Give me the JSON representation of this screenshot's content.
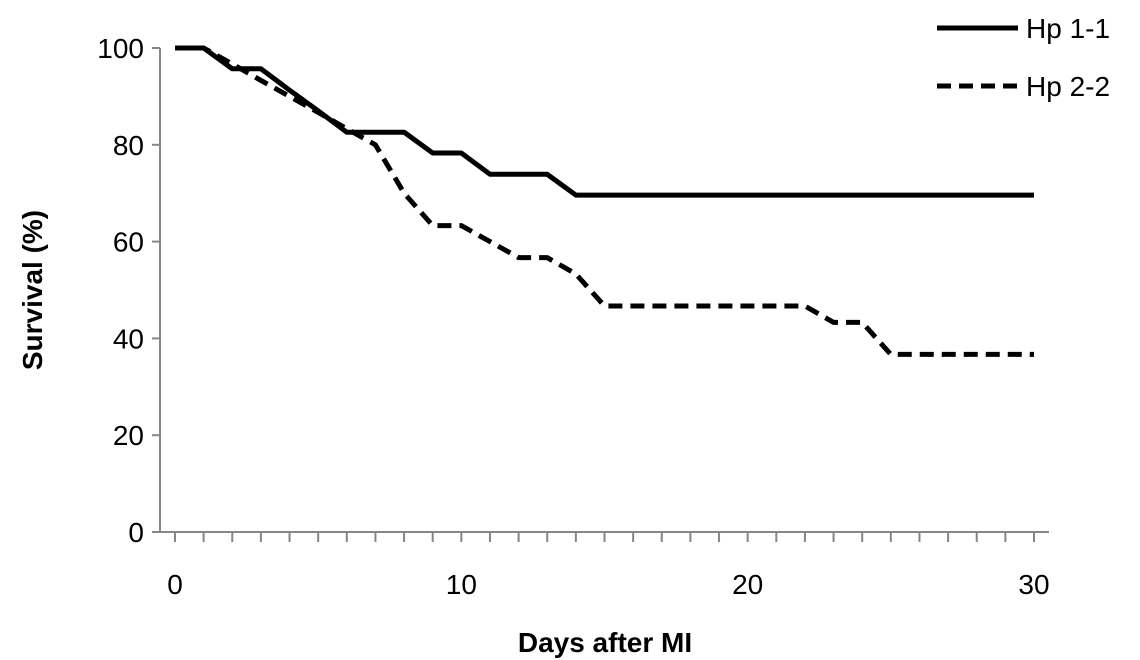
{
  "chart_data": {
    "type": "line",
    "title": "",
    "xlabel": "Days after MI",
    "ylabel": "Survival (%)",
    "xlim": [
      0,
      30
    ],
    "ylim": [
      0,
      100
    ],
    "x_ticks": [
      "0",
      "10",
      "20",
      "30"
    ],
    "y_ticks": [
      "0",
      "20",
      "40",
      "60",
      "80",
      "100"
    ],
    "x_minor_tick_step": 1,
    "grid": false,
    "legend_position": "top-right",
    "series": [
      {
        "name": "Hp 1-1",
        "line_style": "solid",
        "color": "#000000",
        "x": [
          0,
          1,
          2,
          3,
          4,
          5,
          6,
          7,
          8,
          9,
          10,
          11,
          12,
          13,
          14,
          15,
          16,
          17,
          18,
          19,
          20,
          21,
          22,
          23,
          24,
          25,
          26,
          27,
          28,
          29,
          30
        ],
        "y": [
          100,
          100,
          95.7,
          95.7,
          91.3,
          87,
          82.6,
          82.6,
          82.6,
          78.3,
          78.3,
          73.9,
          73.9,
          73.9,
          69.6,
          69.6,
          69.6,
          69.6,
          69.6,
          69.6,
          69.6,
          69.6,
          69.6,
          69.6,
          69.6,
          69.6,
          69.6,
          69.6,
          69.6,
          69.6,
          69.6
        ]
      },
      {
        "name": "Hp 2-2",
        "line_style": "dashed",
        "color": "#000000",
        "x": [
          0,
          1,
          2,
          3,
          4,
          5,
          6,
          7,
          8,
          9,
          10,
          11,
          12,
          13,
          14,
          15,
          16,
          17,
          18,
          19,
          20,
          21,
          22,
          23,
          24,
          25,
          26,
          27,
          28,
          29,
          30
        ],
        "y": [
          100,
          100,
          96.7,
          93.3,
          90,
          86.7,
          83.3,
          80,
          70,
          63.3,
          63.3,
          60,
          56.7,
          56.7,
          53.3,
          46.7,
          46.7,
          46.7,
          46.7,
          46.7,
          46.7,
          46.7,
          46.7,
          43.3,
          43.3,
          36.7,
          36.7,
          36.7,
          36.7,
          36.7,
          36.7
        ]
      }
    ]
  }
}
